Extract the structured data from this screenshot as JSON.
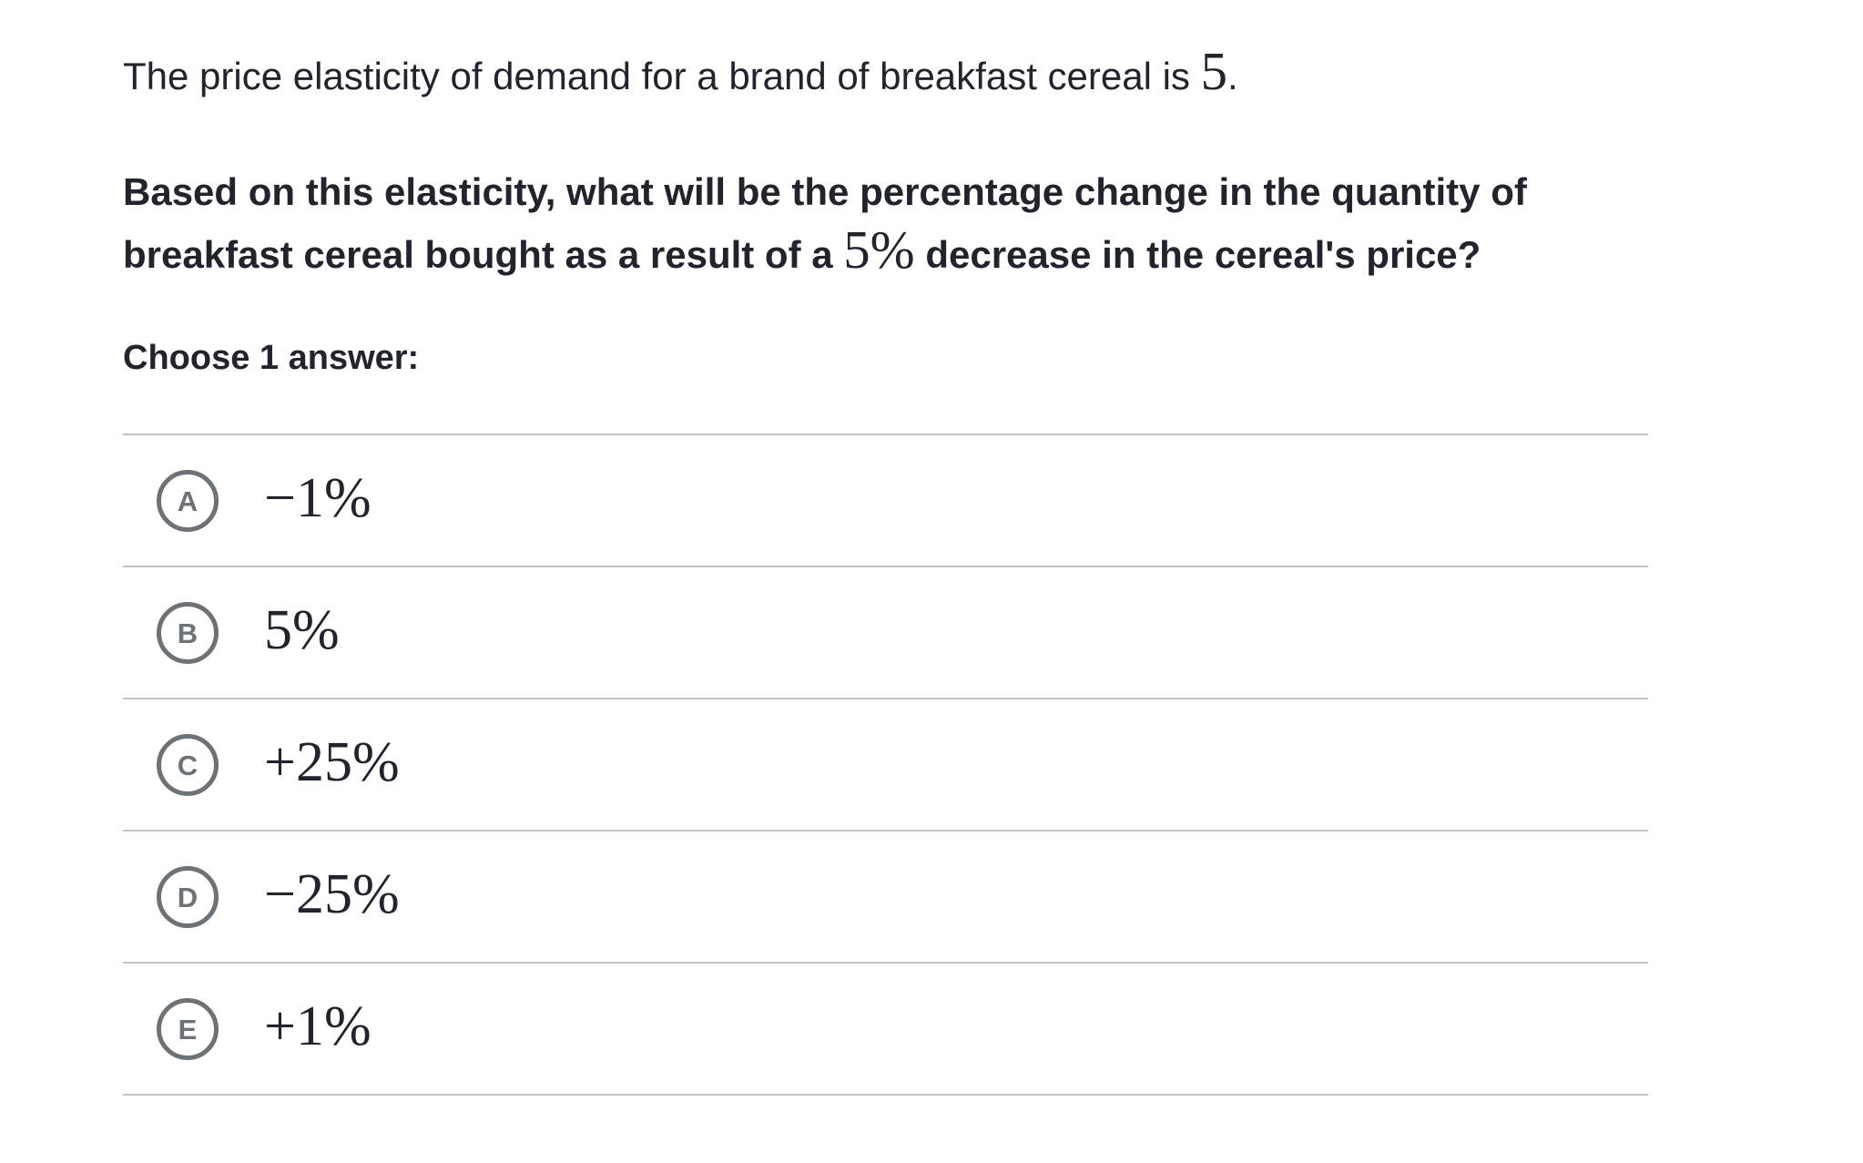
{
  "question": {
    "intro_prefix": "The price elasticity of demand for a brand of breakfast cereal is ",
    "intro_math": "5",
    "intro_suffix": ".",
    "body_part1": "Based on this elasticity, what will be the percentage change in the quantity of breakfast cereal bought as a result of a ",
    "body_math": "5%",
    "body_part2": " decrease in the cereal's price?",
    "choose_label": "Choose 1 answer:"
  },
  "answers": [
    {
      "letter": "A",
      "value": "−1%"
    },
    {
      "letter": "B",
      "value": "5%"
    },
    {
      "letter": "C",
      "value": "+25%"
    },
    {
      "letter": "D",
      "value": "−25%"
    },
    {
      "letter": "E",
      "value": "+1%"
    }
  ],
  "colors": {
    "text": "#21242c",
    "divider": "#c1c4c7",
    "radio_gray": "#6d7277",
    "background": "#ffffff"
  }
}
